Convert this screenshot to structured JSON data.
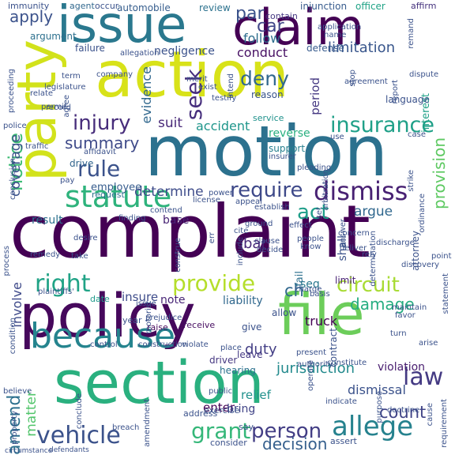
{
  "words": [
    {
      "text": "complaint",
      "color": "#440154"
    },
    {
      "text": "motion",
      "color": "#2c718e"
    },
    {
      "text": "action",
      "color": "#d8e219"
    },
    {
      "text": "section",
      "color": "#2ab07f"
    },
    {
      "text": "policy",
      "color": "#46085c"
    },
    {
      "text": "file",
      "color": "#6ccd5a"
    },
    {
      "text": "issue",
      "color": "#2a788e"
    },
    {
      "text": "claim",
      "color": "#440154"
    },
    {
      "text": "party",
      "color": "#d2e21b"
    },
    {
      "text": "because",
      "color": "#25848e"
    },
    {
      "text": "dismiss",
      "color": "#482173"
    },
    {
      "text": "statute",
      "color": "#2eb37c"
    },
    {
      "text": "allege",
      "color": "#26828e"
    },
    {
      "text": "insurance",
      "color": "#1fa088"
    },
    {
      "text": "vehicle",
      "color": "#3b528b"
    },
    {
      "text": "grant",
      "color": "#35b779"
    },
    {
      "text": "require",
      "color": "#3e4989"
    },
    {
      "text": "right",
      "color": "#20a386"
    },
    {
      "text": "provide",
      "color": "#b5de2b"
    },
    {
      "text": "person",
      "color": "#433e85"
    },
    {
      "text": "injury",
      "color": "#472d7b"
    },
    {
      "text": "rule",
      "color": "#3b528b"
    },
    {
      "text": "deny",
      "color": "#31688e"
    },
    {
      "text": "circuit",
      "color": "#a8db34"
    },
    {
      "text": "law",
      "color": "#443a83"
    },
    {
      "text": "act",
      "color": "#1f9e89"
    },
    {
      "text": "seek",
      "color": "#472f7d"
    },
    {
      "text": "notice",
      "color": "#3dbc74"
    },
    {
      "text": "apply",
      "color": "#3b528b"
    },
    {
      "text": "jurisdiction",
      "color": "#238a8d"
    },
    {
      "text": "summary",
      "color": "#3e4a89"
    },
    {
      "text": "count",
      "color": "#414487"
    },
    {
      "text": "amend",
      "color": "#2d708e"
    },
    {
      "text": "car",
      "color": "#404688"
    },
    {
      "text": "decision",
      "color": "#355f8d"
    },
    {
      "text": "damage",
      "color": "#26ad81"
    },
    {
      "text": "par",
      "color": "#3b528b"
    },
    {
      "text": "accident",
      "color": "#1f968b"
    },
    {
      "text": "determine",
      "color": "#3e4c8a"
    },
    {
      "text": "argue",
      "color": "#31688e"
    },
    {
      "text": "suit",
      "color": "#482878"
    },
    {
      "text": "limitation",
      "color": "#39568c"
    },
    {
      "text": "provision",
      "color": "#5ec962"
    },
    {
      "text": "coverage",
      "color": "#3b528b"
    },
    {
      "text": "matter",
      "color": "#50c46a"
    },
    {
      "text": "follow",
      "color": "#2e6e8e"
    },
    {
      "text": "ch",
      "color": "#31688e"
    },
    {
      "text": "involve",
      "color": "#3e4989"
    },
    {
      "text": "dismissal",
      "color": "#3b528b"
    },
    {
      "text": "duty",
      "color": "#433e85"
    },
    {
      "text": "conduct",
      "color": "#471063"
    },
    {
      "text": "insure",
      "color": "#3e4c8a"
    },
    {
      "text": "evidence",
      "color": "#31688e"
    },
    {
      "text": "negligence",
      "color": "#3b528b"
    },
    {
      "text": "result",
      "color": "#2c728e"
    },
    {
      "text": "base",
      "color": "#482475"
    },
    {
      "text": "enter",
      "color": "#440154"
    },
    {
      "text": "period",
      "color": "#453882"
    },
    {
      "text": "liability",
      "color": "#31688e"
    },
    {
      "text": "relief",
      "color": "#21918c"
    },
    {
      "text": "bring",
      "color": "#414487"
    },
    {
      "text": "violation",
      "color": "#481d6f"
    },
    {
      "text": "shall",
      "color": "#3b528b"
    },
    {
      "text": "reverse",
      "color": "#29af7f"
    },
    {
      "text": "bar",
      "color": "#482878"
    },
    {
      "text": "employee",
      "color": "#365c8d"
    },
    {
      "text": "interest",
      "color": "#1fa187"
    },
    {
      "text": "truck",
      "color": "#440154"
    },
    {
      "text": "fail",
      "color": "#2d708e"
    },
    {
      "text": "note",
      "color": "#482576"
    },
    {
      "text": "defense",
      "color": "#375b8d"
    },
    {
      "text": "drive",
      "color": "#32658e"
    },
    {
      "text": "failure",
      "color": "#3b528b"
    },
    {
      "text": "hearing",
      "color": "#2c728e"
    },
    {
      "text": "driver",
      "color": "#453781"
    },
    {
      "text": "contract",
      "color": "#3b528b"
    },
    {
      "text": "seq",
      "color": "#2a788e"
    },
    {
      "text": "attorney",
      "color": "#3b528b"
    },
    {
      "text": "support",
      "color": "#277f8e"
    },
    {
      "text": "limit",
      "color": "#482173"
    },
    {
      "text": "service",
      "color": "#20928c"
    },
    {
      "text": "reason",
      "color": "#39558c"
    },
    {
      "text": "language",
      "color": "#3b528b"
    },
    {
      "text": "argument",
      "color": "#2d708e"
    },
    {
      "text": "injunction",
      "color": "#375b8d"
    },
    {
      "text": "automobile",
      "color": "#365d8d"
    },
    {
      "text": "review",
      "color": "#2c728e"
    },
    {
      "text": "officer",
      "color": "#20a386"
    },
    {
      "text": "affirm",
      "color": "#46337e"
    },
    {
      "text": "agent",
      "color": "#31688e"
    },
    {
      "text": "occur",
      "color": "#3b528b"
    },
    {
      "text": "immunity",
      "color": "#3b528b"
    },
    {
      "text": "contain",
      "color": "#453882"
    },
    {
      "text": "request",
      "color": "#2d708e"
    },
    {
      "text": "date",
      "color": "#1f998a"
    },
    {
      "text": "address",
      "color": "#3b528b"
    },
    {
      "text": "give",
      "color": "#3b528b"
    },
    {
      "text": "leave",
      "color": "#443983"
    },
    {
      "text": "year",
      "color": "#3b528b"
    },
    {
      "text": "raise",
      "color": "#46085c"
    },
    {
      "text": "allow",
      "color": "#3b528b"
    },
    {
      "text": "exercise",
      "color": "#3b528b"
    },
    {
      "text": "receive",
      "color": "#470e61"
    },
    {
      "text": "consider",
      "color": "#3b528b"
    },
    {
      "text": "assert",
      "color": "#3b528b"
    },
    {
      "text": "say",
      "color": "#3b528b"
    },
    {
      "text": "police",
      "color": "#3b528b"
    },
    {
      "text": "traffic",
      "color": "#3b528b"
    },
    {
      "text": "remedy",
      "color": "#3b528b"
    },
    {
      "text": "condition",
      "color": "#3b528b"
    },
    {
      "text": "take",
      "color": "#3b528b"
    },
    {
      "text": "property",
      "color": "#3b528b"
    },
    {
      "text": "conclude",
      "color": "#3b528b"
    },
    {
      "text": "circumstance",
      "color": "#3b528b"
    },
    {
      "text": "defendants",
      "color": "#3b528b"
    },
    {
      "text": "amendment",
      "color": "#3b528b"
    },
    {
      "text": "breach",
      "color": "#3b528b"
    },
    {
      "text": "control",
      "color": "#3b528b"
    },
    {
      "text": "construction",
      "color": "#3b528b"
    },
    {
      "text": "violate",
      "color": "#3b528b"
    },
    {
      "text": "present",
      "color": "#3b528b"
    },
    {
      "text": "turn",
      "color": "#3b528b"
    },
    {
      "text": "arise",
      "color": "#3b528b"
    },
    {
      "text": "indicate",
      "color": "#3b528b"
    },
    {
      "text": "doctrine",
      "color": "#3b528b"
    },
    {
      "text": "requirement",
      "color": "#3b528b"
    },
    {
      "text": "purpose",
      "color": "#3b528b"
    },
    {
      "text": "cause",
      "color": "#3b528b"
    },
    {
      "text": "statement",
      "color": "#3b528b"
    },
    {
      "text": "favor",
      "color": "#3b528b"
    },
    {
      "text": "maintain",
      "color": "#3b528b"
    },
    {
      "text": "point",
      "color": "#3b528b"
    },
    {
      "text": "discovery",
      "color": "#3b528b"
    },
    {
      "text": "ordinance",
      "color": "#3b528b"
    },
    {
      "text": "arbitration",
      "color": "#3b528b"
    },
    {
      "text": "pleading",
      "color": "#3b528b"
    },
    {
      "text": "insurer",
      "color": "#3b528b"
    },
    {
      "text": "establish",
      "color": "#3b528b"
    },
    {
      "text": "appeal",
      "color": "#3b528b"
    },
    {
      "text": "include",
      "color": "#3b528b"
    },
    {
      "text": "cite",
      "color": "#3b528b"
    },
    {
      "text": "ground",
      "color": "#3b528b"
    },
    {
      "text": "decide",
      "color": "#3b528b"
    },
    {
      "text": "clause",
      "color": "#3b528b"
    },
    {
      "text": "answer",
      "color": "#3b528b"
    },
    {
      "text": "effect",
      "color": "#3b528b"
    },
    {
      "text": "people",
      "color": "#3b528b"
    },
    {
      "text": "know",
      "color": "#3b528b"
    },
    {
      "text": "construe",
      "color": "#3b528b"
    },
    {
      "text": "finding",
      "color": "#3b528b"
    },
    {
      "text": "contend",
      "color": "#3b528b"
    },
    {
      "text": "license",
      "color": "#3b528b"
    },
    {
      "text": "power",
      "color": "#3b528b"
    },
    {
      "text": "pay",
      "color": "#3b528b"
    },
    {
      "text": "affidavit",
      "color": "#3b528b"
    },
    {
      "text": "relate",
      "color": "#3b528b"
    },
    {
      "text": "permit",
      "color": "#3b528b"
    },
    {
      "text": "record",
      "color": "#3b528b"
    },
    {
      "text": "proceeding",
      "color": "#3b528b"
    },
    {
      "text": "legislature",
      "color": "#3b528b"
    },
    {
      "text": "term",
      "color": "#3b528b"
    },
    {
      "text": "company",
      "color": "#3b528b"
    },
    {
      "text": "agree",
      "color": "#3b528b"
    },
    {
      "text": "allegation",
      "color": "#3b528b"
    },
    {
      "text": "merit",
      "color": "#3b528b"
    },
    {
      "text": "exist",
      "color": "#3b528b"
    },
    {
      "text": "testify",
      "color": "#3b528b"
    },
    {
      "text": "intend",
      "color": "#3b528b"
    },
    {
      "text": "agreement",
      "color": "#3b528b"
    },
    {
      "text": "report",
      "color": "#3b528b"
    },
    {
      "text": "dispute",
      "color": "#3b528b"
    },
    {
      "text": "stop",
      "color": "#3b528b"
    },
    {
      "text": "application",
      "color": "#3b528b"
    },
    {
      "text": "name",
      "color": "#3b528b"
    },
    {
      "text": "strike",
      "color": "#3b528b"
    },
    {
      "text": "operate",
      "color": "#3b528b"
    },
    {
      "text": "authority",
      "color": "#3b528b"
    },
    {
      "text": "remand",
      "color": "#3b528b"
    },
    {
      "text": "issue",
      "color": "#3b528b"
    },
    {
      "text": "motorist",
      "color": "#3b528b"
    },
    {
      "text": "prejudice",
      "color": "#3b528b"
    },
    {
      "text": "place",
      "color": "#3b528b"
    },
    {
      "text": "public",
      "color": "#3b528b"
    },
    {
      "text": "believe",
      "color": "#3b528b"
    },
    {
      "text": "charge",
      "color": "#3b528b"
    },
    {
      "text": "basis",
      "color": "#3b528b"
    },
    {
      "text": "rely",
      "color": "#3b528b"
    },
    {
      "text": "concern",
      "color": "#3b528b"
    },
    {
      "text": "discharge",
      "color": "#3b528b"
    },
    {
      "text": "plaintiffs'",
      "color": "#3b528b"
    },
    {
      "text": "process",
      "color": "#3b528b"
    },
    {
      "text": "constitute",
      "color": "#3b528b"
    },
    {
      "text": "conclusion",
      "color": "#3b528b"
    },
    {
      "text": "determination",
      "color": "#3b528b"
    },
    {
      "text": "deliver",
      "color": "#3b528b"
    },
    {
      "text": "err",
      "color": "#3b528b"
    },
    {
      "text": "set",
      "color": "#3b528b"
    },
    {
      "text": "use",
      "color": "#3b528b"
    },
    {
      "text": "case",
      "color": "#3b528b"
    },
    {
      "text": "desire",
      "color": "#3b528b"
    }
  ]
}
